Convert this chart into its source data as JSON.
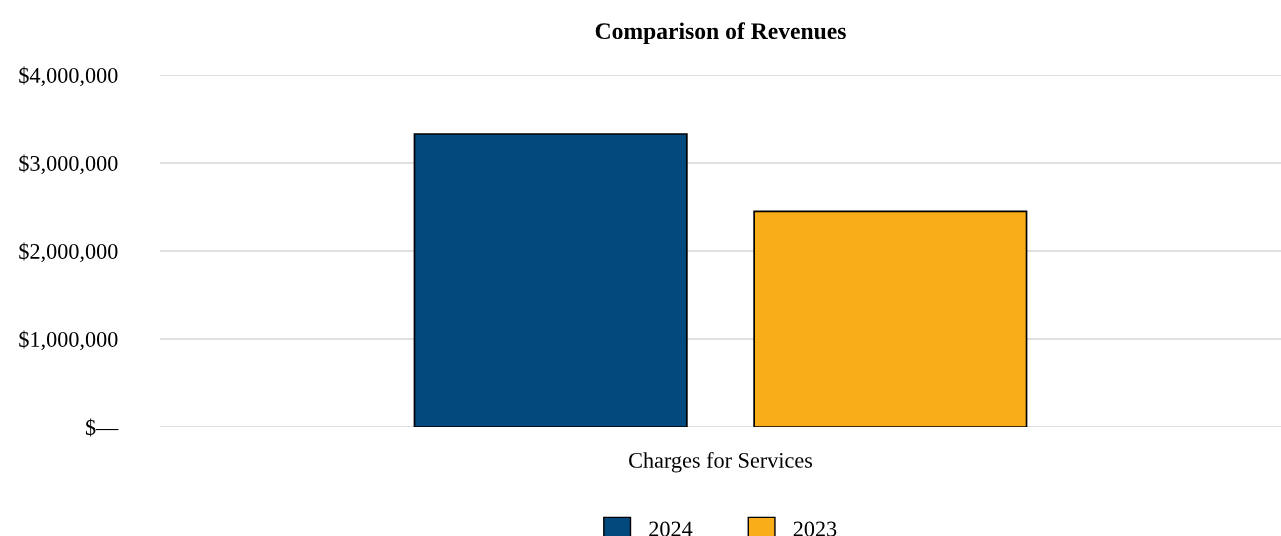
{
  "chart_data": {
    "type": "bar",
    "title": "Comparison of Revenues",
    "categories": [
      "Charges for Services"
    ],
    "series": [
      {
        "name": "2024",
        "color": "#03497e",
        "values": [
          3330000
        ]
      },
      {
        "name": "2023",
        "color": "#f9ad19",
        "values": [
          2450000
        ]
      }
    ],
    "ylim": [
      0,
      4000000
    ],
    "yticks": [
      {
        "value": 0,
        "label": "$—"
      },
      {
        "value": 1000000,
        "label": "$1,000,000"
      },
      {
        "value": 2000000,
        "label": "$2,000,000"
      },
      {
        "value": 3000000,
        "label": "$3,000,000"
      },
      {
        "value": 4000000,
        "label": "$4,000,000"
      }
    ],
    "grid": "y",
    "legend": "bottom"
  }
}
